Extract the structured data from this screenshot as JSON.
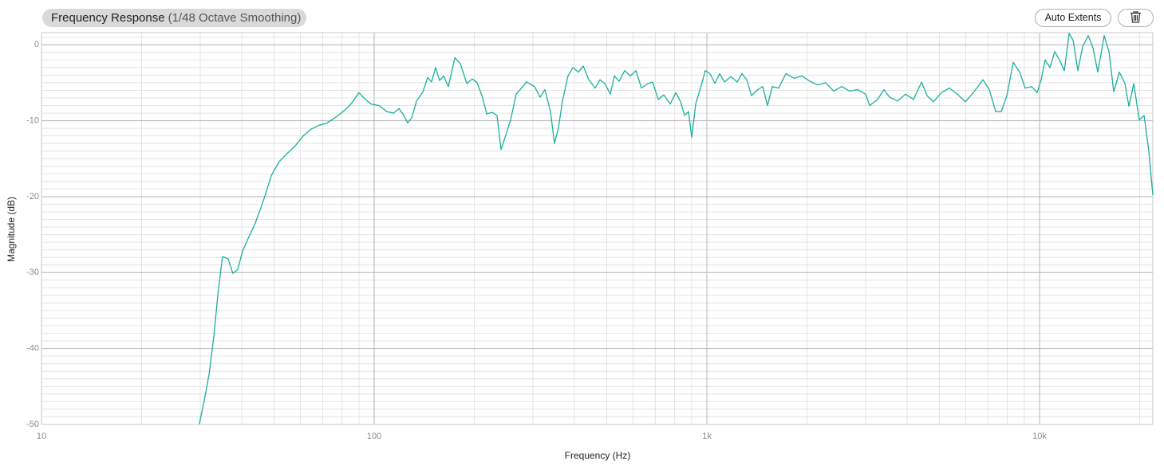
{
  "controls": {
    "auto_extents": "Auto Extents"
  },
  "chart_data": {
    "type": "line",
    "title": "Frequency Response",
    "subtitle": "(1/48 Octave Smoothing)",
    "xlabel": "Frequency (Hz)",
    "ylabel": "Magnitude (dB)",
    "log_x": true,
    "grid": true,
    "xlim": [
      10,
      21900
    ],
    "ylim": [
      -50,
      1.6
    ],
    "xticks": [
      10,
      100,
      {
        "value": 1000,
        "label": "1k"
      },
      {
        "value": 10000,
        "label": "10k"
      }
    ],
    "yticks": [
      0,
      -10,
      -20,
      -30,
      -40,
      -50
    ],
    "xminorticks": [
      20,
      30,
      40,
      50,
      60,
      70,
      80,
      90,
      200,
      300,
      400,
      500,
      600,
      700,
      800,
      900,
      2000,
      3000,
      4000,
      5000,
      6000,
      7000,
      8000,
      9000,
      20000
    ],
    "yminorticks": [
      1,
      -1,
      -2,
      -3,
      -4,
      -5,
      -6,
      -7,
      -8,
      -9,
      -11,
      -12,
      -13,
      -14,
      -15,
      -16,
      -17,
      -18,
      -19,
      -21,
      -22,
      -23,
      -24,
      -25,
      -26,
      -27,
      -28,
      -29,
      -31,
      -32,
      -33,
      -34,
      -35,
      -36,
      -37,
      -38,
      -39,
      -41,
      -42,
      -43,
      -44,
      -45,
      -46,
      -47,
      -48,
      -49
    ],
    "x": [
      29.8,
      30.8,
      31.9,
      33.0,
      33.9,
      35.0,
      36.4,
      37.6,
      38.9,
      40.2,
      42.0,
      43.9,
      46.4,
      49.1,
      51.8,
      54.8,
      57.9,
      61.2,
      64.7,
      68.3,
      72.2,
      76.3,
      80.6,
      85.2,
      90.0,
      93.6,
      97.8,
      103.4,
      109.2,
      114.2,
      118.7,
      122.0,
      126.1,
      129.7,
      134.1,
      140.1,
      144.8,
      148.8,
      152.9,
      157.3,
      161.7,
      167.1,
      174.7,
      181.6,
      189.8,
      197.2,
      203.9,
      210.8,
      217.9,
      226.5,
      234.0,
      240.6,
      248.6,
      257.1,
      267.2,
      274.7,
      287.1,
      303.4,
      315.3,
      326.0,
      338.8,
      348.3,
      358.1,
      368.1,
      382.5,
      395.5,
      411.1,
      425.0,
      441.7,
      461.7,
      477.2,
      493.3,
      512.7,
      527.1,
      544.8,
      566.2,
      588.6,
      611.8,
      636.0,
      664.6,
      687.0,
      714.1,
      742.2,
      775.8,
      806.3,
      833.5,
      856.8,
      880.7,
      900.4,
      925.6,
      956.8,
      989.0,
      1022,
      1057,
      1092,
      1129,
      1180,
      1234,
      1275,
      1318,
      1362,
      1424,
      1472,
      1521,
      1573,
      1644,
      1728,
      1826,
      1929,
      2039,
      2154,
      2277,
      2406,
      2543,
      2687,
      2840,
      3001,
      3085,
      3261,
      3407,
      3541,
      3742,
      3955,
      4180,
      4418,
      4591,
      4797,
      5070,
      5358,
      5662,
      5984,
      6324,
      6755,
      7062,
      7382,
      7673,
      7976,
      8336,
      8710,
      9055,
      9463,
      9836,
      10110,
      10390,
      10750,
      11110,
      11480,
      11870,
      12270,
      12610,
      13040,
      13480,
      14010,
      14480,
      14960,
      15640,
      16170,
      16710,
      17370,
      18060,
      18560,
      19190,
      19940,
      20610,
      21300,
      21900
    ],
    "series": [
      {
        "color": "#1aae9f",
        "values": [
          -50,
          -47,
          -43.4,
          -38.2,
          -32.9,
          -27.9,
          -28.2,
          -30.1,
          -29.6,
          -27.2,
          -25.3,
          -23.5,
          -20.6,
          -17.2,
          -15.4,
          -14.3,
          -13.3,
          -12.0,
          -11.1,
          -10.6,
          -10.3,
          -9.6,
          -8.8,
          -7.8,
          -6.3,
          -7.1,
          -7.8,
          -8.0,
          -8.8,
          -9.0,
          -8.4,
          -9.1,
          -10.3,
          -9.6,
          -7.4,
          -6.2,
          -4.3,
          -4.9,
          -3.0,
          -4.7,
          -4.1,
          -5.5,
          -1.7,
          -2.5,
          -5.1,
          -4.5,
          -5.0,
          -6.7,
          -9.1,
          -8.9,
          -9.3,
          -13.8,
          -11.9,
          -9.9,
          -6.5,
          -5.9,
          -4.9,
          -5.5,
          -6.9,
          -5.9,
          -8.8,
          -13.0,
          -10.9,
          -7.4,
          -4.1,
          -3.0,
          -3.6,
          -2.8,
          -4.6,
          -5.7,
          -4.6,
          -5.1,
          -6.5,
          -4.1,
          -4.8,
          -3.4,
          -4.1,
          -3.4,
          -5.7,
          -5.1,
          -4.9,
          -7.2,
          -6.6,
          -7.8,
          -6.3,
          -7.5,
          -9.3,
          -8.8,
          -12.2,
          -7.8,
          -5.7,
          -3.4,
          -3.8,
          -5.1,
          -3.8,
          -4.9,
          -4.2,
          -4.9,
          -3.8,
          -4.6,
          -6.7,
          -5.9,
          -5.5,
          -8.0,
          -5.5,
          -5.7,
          -3.8,
          -4.4,
          -4.1,
          -4.8,
          -5.3,
          -5.0,
          -6.1,
          -5.5,
          -6.1,
          -5.9,
          -6.5,
          -8.0,
          -7.2,
          -5.9,
          -6.9,
          -7.4,
          -6.5,
          -7.2,
          -4.9,
          -6.7,
          -7.5,
          -6.3,
          -5.7,
          -6.5,
          -7.5,
          -6.3,
          -4.6,
          -5.9,
          -8.8,
          -8.8,
          -6.7,
          -2.3,
          -3.6,
          -5.7,
          -5.5,
          -6.3,
          -4.6,
          -2.0,
          -3.0,
          -0.9,
          -2.0,
          -3.4,
          1.5,
          0.6,
          -3.4,
          -0.2,
          1.2,
          -0.4,
          -3.6,
          1.2,
          -0.9,
          -6.2,
          -3.6,
          -5.1,
          -8.1,
          -5.1,
          -9.9,
          -9.3,
          -14.0,
          -19.8
        ]
      }
    ]
  }
}
